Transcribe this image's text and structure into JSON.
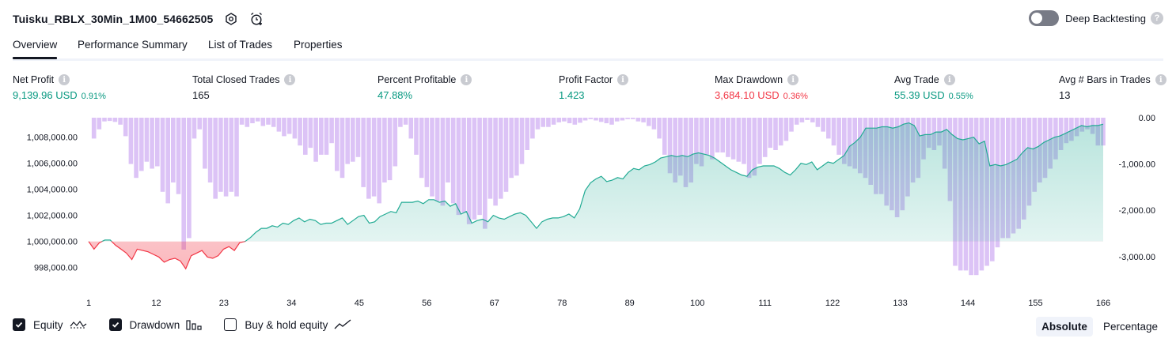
{
  "header": {
    "title": "Tuisku_RBLX_30Min_1M00_54662505",
    "settings_icon": "gear-icon",
    "alert_icon": "alarm-clock-plus-icon",
    "deep_backtesting_label": "Deep Backtesting",
    "deep_backtesting_enabled": false,
    "help_icon": "question-icon"
  },
  "tabs": [
    {
      "label": "Overview",
      "active": true
    },
    {
      "label": "Performance Summary",
      "active": false
    },
    {
      "label": "List of Trades",
      "active": false
    },
    {
      "label": "Properties",
      "active": false
    }
  ],
  "stats": [
    {
      "label": "Net Profit",
      "value": "9,139.96 USD",
      "pct": "0.91%",
      "color": "#089981"
    },
    {
      "label": "Total Closed Trades",
      "value": "165",
      "pct": "",
      "color": "#131722"
    },
    {
      "label": "Percent Profitable",
      "value": "47.88%",
      "pct": "",
      "color": "#089981"
    },
    {
      "label": "Profit Factor",
      "value": "1.423",
      "pct": "",
      "color": "#089981"
    },
    {
      "label": "Max Drawdown",
      "value": "3,684.10 USD",
      "pct": "0.36%",
      "color": "#f23645"
    },
    {
      "label": "Avg Trade",
      "value": "55.39 USD",
      "pct": "0.55%",
      "color": "#089981"
    },
    {
      "label": "Avg # Bars in Trades",
      "value": "13",
      "pct": "",
      "color": "#131722"
    }
  ],
  "chart_data": {
    "type": "area",
    "left_axis": {
      "ticks": [
        "1,008,000.00",
        "1,006,000.00",
        "1,004,000.00",
        "1,002,000.00",
        "1,000,000.00",
        "998,000.00"
      ],
      "values": [
        1008000,
        1006000,
        1004000,
        1002000,
        1000000,
        998000
      ],
      "range": [
        997000,
        1009500
      ]
    },
    "right_axis": {
      "ticks": [
        "0.00",
        "-1,000.00",
        "-2,000.00",
        "-3,000.00"
      ],
      "values": [
        0,
        -1000,
        -2000,
        -3000
      ],
      "range": [
        -3720,
        0
      ]
    },
    "x_ticks": [
      "1",
      "12",
      "23",
      "34",
      "45",
      "56",
      "67",
      "78",
      "89",
      "100",
      "111",
      "122",
      "133",
      "144",
      "155",
      "166"
    ],
    "x_tick_values": [
      1,
      12,
      23,
      34,
      45,
      56,
      67,
      78,
      89,
      100,
      111,
      122,
      133,
      144,
      155,
      166
    ],
    "x_range": [
      1,
      166
    ],
    "baseline": 1000000,
    "colors": {
      "profit_line": "#22ab94",
      "loss_line": "#f23645",
      "drawdown_bar": "#d6b8f5"
    },
    "series": [
      {
        "name": "Equity",
        "x_step": 1,
        "values": [
          1000000,
          999400,
          999900,
          1000100,
          1000100,
          999700,
          999400,
          999100,
          998600,
          999400,
          999300,
          999200,
          999000,
          998800,
          998400,
          998600,
          998700,
          998500,
          997900,
          998900,
          999100,
          999300,
          998800,
          998700,
          998900,
          999400,
          999600,
          999300,
          999900,
          1000000,
          1000300,
          1000700,
          1001000,
          1001000,
          1001200,
          1001100,
          1001400,
          1001300,
          1001600,
          1001800,
          1001500,
          1001700,
          1001600,
          1001300,
          1001400,
          1001400,
          1001600,
          1001800,
          1001300,
          1001600,
          1001900,
          1002000,
          1001400,
          1001500,
          1001900,
          1002100,
          1002300,
          1002200,
          1003000,
          1003000,
          1003000,
          1003100,
          1002900,
          1003200,
          1003200,
          1003000,
          1003100,
          1002700,
          1002900,
          1002100,
          1002300,
          1001400,
          1001600,
          1001700,
          1001500,
          1002000,
          1001800,
          1001700,
          1001900,
          1002100,
          1002200,
          1002000,
          1001500,
          1001000,
          1001500,
          1001700,
          1001800,
          1001800,
          1001900,
          1002100,
          1001800,
          1002500,
          1003900,
          1004500,
          1004800,
          1005000,
          1004600,
          1004700,
          1004900,
          1004800,
          1005300,
          1005600,
          1005500,
          1005800,
          1005900,
          1006100,
          1006400,
          1006500,
          1006600,
          1006500,
          1006600,
          1006500,
          1006700,
          1006800,
          1006700,
          1006600,
          1006400,
          1006100,
          1005800,
          1005500,
          1005300,
          1005100,
          1005000,
          1005500,
          1005700,
          1005800,
          1005800,
          1005800,
          1005600,
          1005300,
          1005100,
          1005500,
          1006000,
          1005900,
          1006100,
          1005500,
          1005800,
          1006100,
          1006000,
          1006300,
          1006600,
          1007300,
          1007600,
          1008000,
          1008700,
          1008700,
          1008700,
          1008800,
          1008800,
          1008700,
          1008800,
          1009000,
          1009100,
          1008900,
          1008100,
          1008200,
          1008200,
          1008400,
          1008400,
          1008600,
          1008200,
          1007900,
          1007800,
          1007900,
          1008000,
          1007500,
          1007700,
          1005800,
          1005900,
          1005800,
          1005900,
          1006100,
          1006300,
          1006800,
          1007200,
          1007100,
          1007300,
          1007600,
          1007800,
          1008000,
          1008100,
          1008300,
          1008500,
          1008700,
          1008900,
          1008800,
          1008900,
          1008900,
          1009000
        ]
      },
      {
        "name": "Drawdown",
        "x_step": 1,
        "values": [
          0,
          -450,
          -250,
          -80,
          -70,
          -90,
          -150,
          -400,
          -1000,
          -1300,
          -1150,
          -950,
          -1100,
          -1050,
          -1600,
          -1850,
          -1400,
          -1650,
          -2850,
          -2600,
          -450,
          -250,
          -1100,
          -1400,
          -1750,
          -1600,
          -1700,
          -1600,
          -1700,
          -150,
          -200,
          -120,
          -80,
          -180,
          -150,
          -200,
          -300,
          -400,
          -350,
          -450,
          -600,
          -800,
          -650,
          -950,
          -800,
          -800,
          -550,
          -1150,
          -1300,
          -1000,
          -950,
          -850,
          -1500,
          -1750,
          -1700,
          -1850,
          -1400,
          -1350,
          -1050,
          -200,
          -150,
          -450,
          -800,
          -1300,
          -1500,
          -1700,
          -1800,
          -1900,
          -1400,
          -1850,
          -2100,
          -2050,
          -2300,
          -2200,
          -2100,
          -2400,
          -1750,
          -1900,
          -1750,
          -1600,
          -1300,
          -1250,
          -1000,
          -700,
          -450,
          -250,
          -200,
          -200,
          -150,
          -100,
          -80,
          -120,
          -150,
          -110,
          -60,
          -30,
          -60,
          -90,
          -120,
          -150,
          -80,
          -60,
          -30,
          -30,
          -80,
          -100,
          -180,
          -250,
          -450,
          -800,
          -1200,
          -1400,
          -1250,
          -1500,
          -1400,
          -1000,
          -1050,
          -800,
          -900,
          -750,
          -750,
          -850,
          -900,
          -950,
          -1000,
          -1300,
          -1250,
          -1000,
          -850,
          -650,
          -700,
          -600,
          -500,
          -300,
          -150,
          -100,
          -50,
          -100,
          -200,
          -300,
          -450,
          -600,
          -800,
          -1000,
          -1050,
          -1100,
          -1200,
          -1300,
          -1450,
          -1650,
          -1650,
          -1900,
          -2000,
          -2150,
          -2000,
          -1700,
          -1400,
          -1300,
          -900,
          -650,
          -700,
          -600,
          -1100,
          -1800,
          -3200,
          -3300,
          -3300,
          -3400,
          -3400,
          -3300,
          -3200,
          -3100,
          -2800,
          -2600,
          -2600,
          -2500,
          -2400,
          -2200,
          -1900,
          -1600,
          -1400,
          -1300,
          -1100,
          -900,
          -700,
          -550,
          -500,
          -400,
          -300,
          -250,
          -350,
          -600,
          -600
        ]
      }
    ]
  },
  "footer": {
    "legend": [
      {
        "label": "Equity",
        "checked": true,
        "icon": "equity-line-icon"
      },
      {
        "label": "Drawdown",
        "checked": true,
        "icon": "drawdown-bars-icon"
      },
      {
        "label": "Buy & hold equity",
        "checked": false,
        "icon": "buy-hold-line-icon"
      }
    ],
    "modes": [
      {
        "label": "Absolute",
        "active": true
      },
      {
        "label": "Percentage",
        "active": false
      }
    ]
  }
}
